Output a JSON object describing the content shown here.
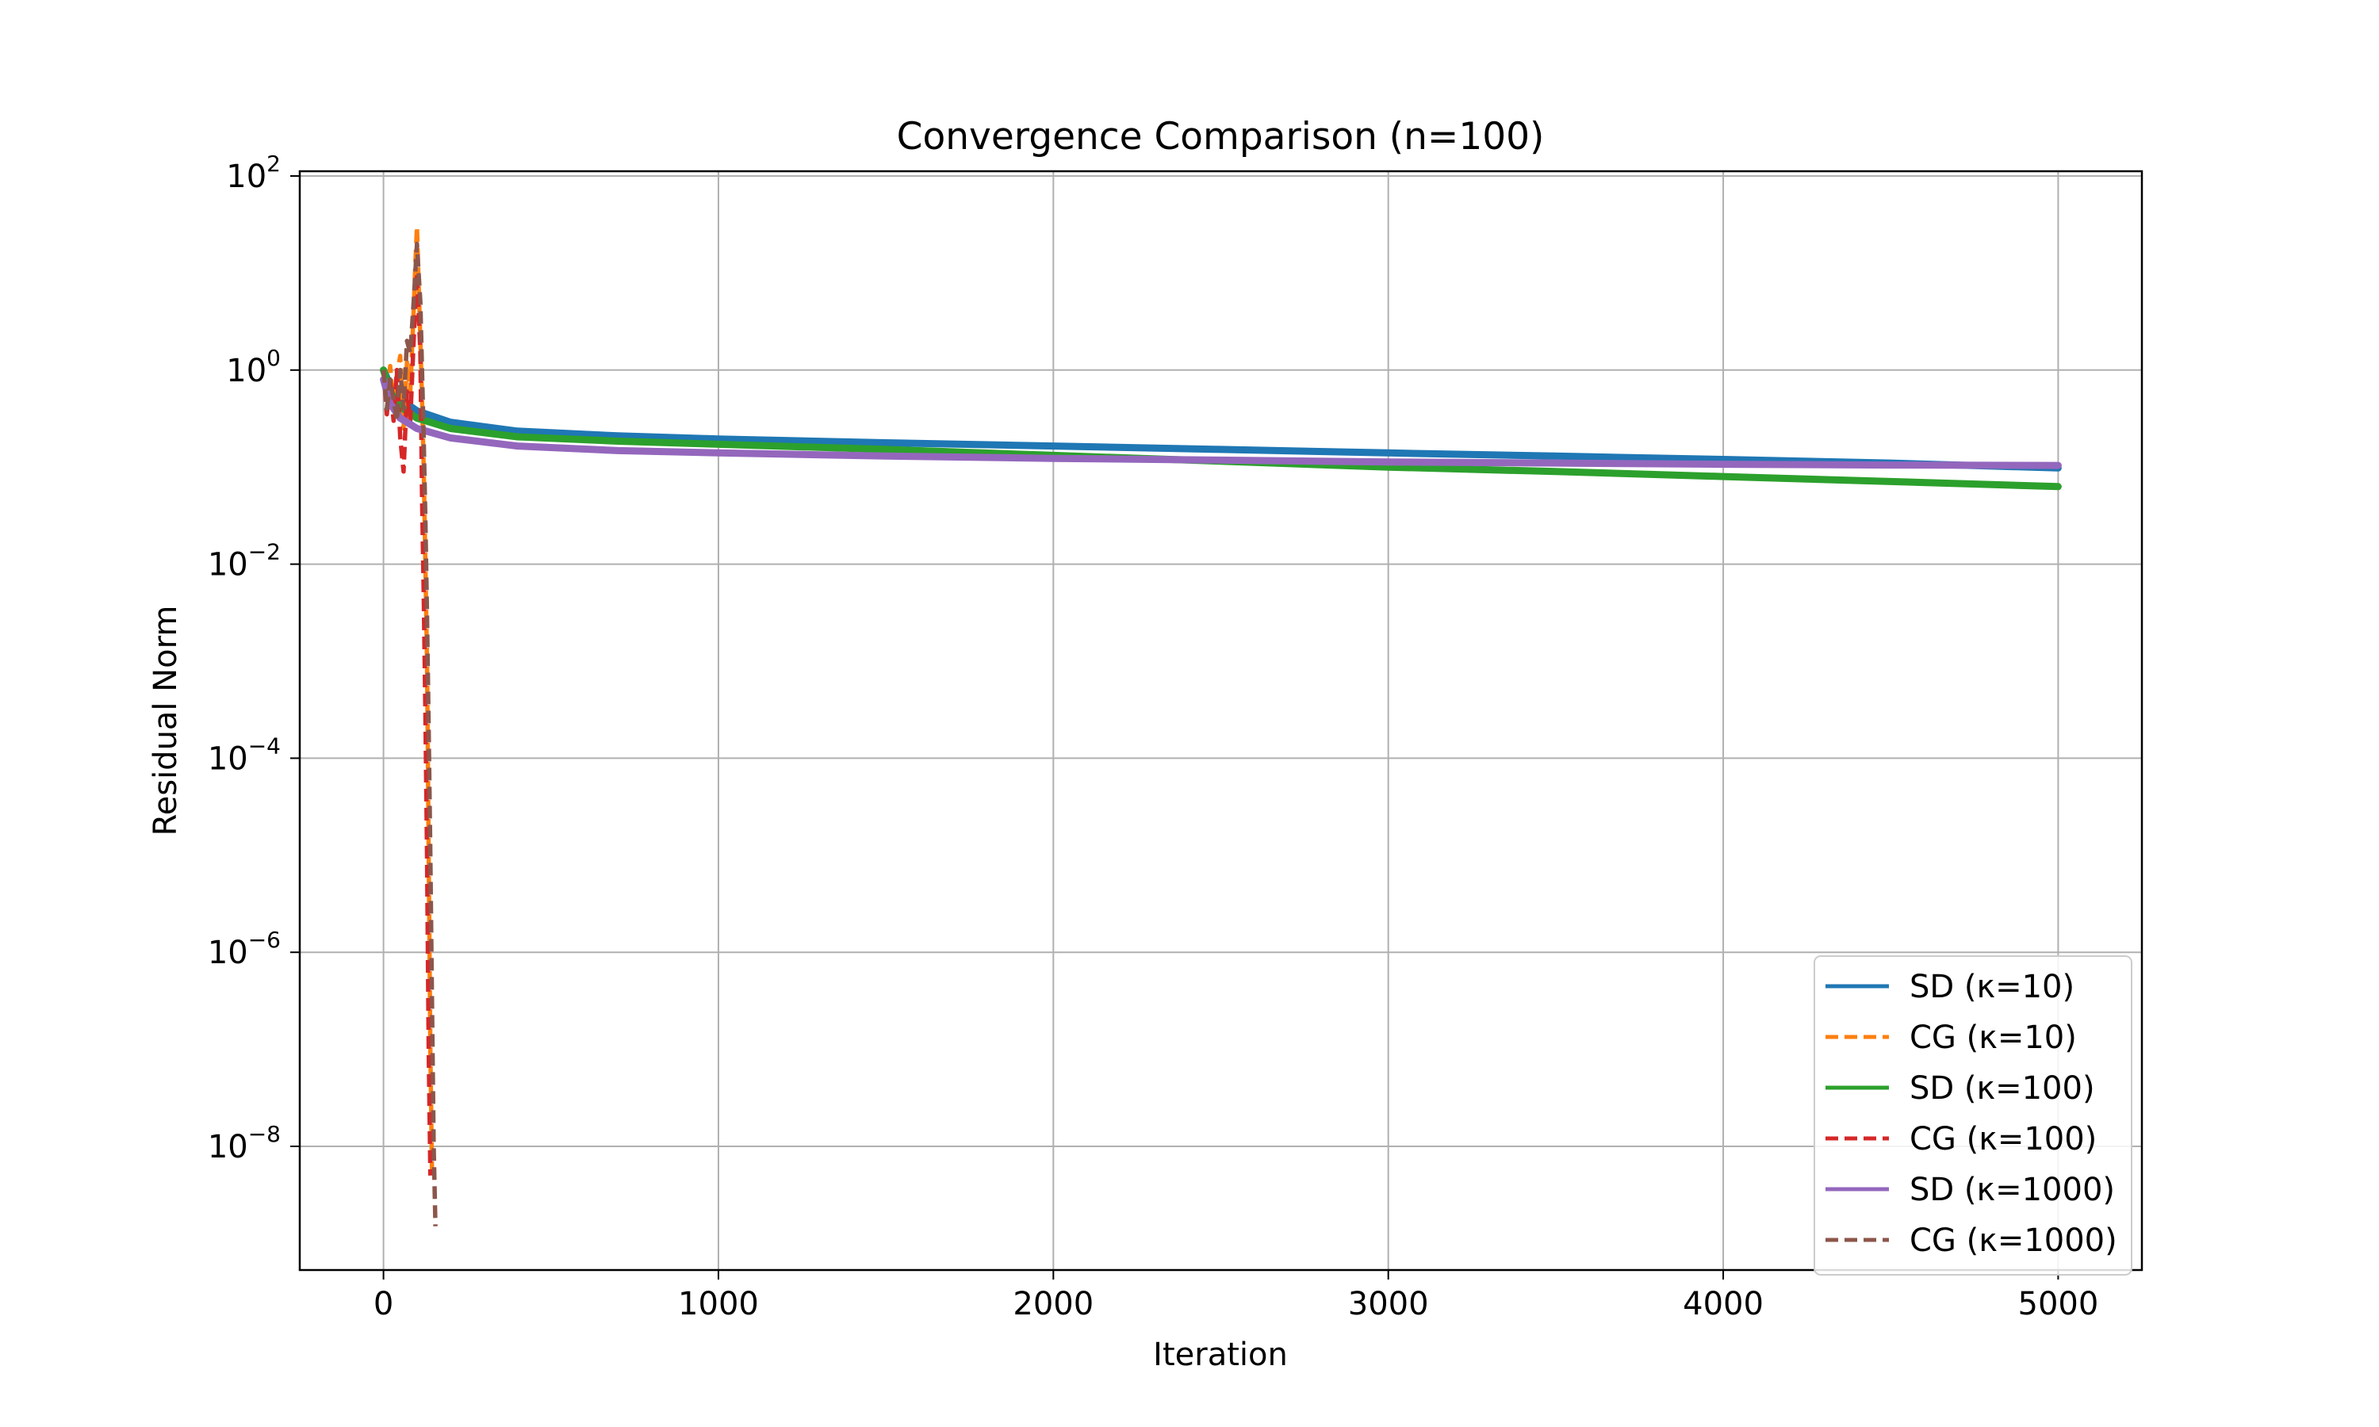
{
  "chart_data": {
    "type": "line",
    "title": "Convergence Comparison (n=100)",
    "xlabel": "Iteration",
    "ylabel": "Residual Norm",
    "xscale": "linear",
    "yscale": "log",
    "xlim": [
      -250,
      5250
    ],
    "ylim": [
      1e-10,
      100
    ],
    "xticks": [
      "0",
      "1000",
      "2000",
      "3000",
      "4000",
      "5000"
    ],
    "xtick_values": [
      0,
      1000,
      2000,
      3000,
      4000,
      5000
    ],
    "yticks": [
      {
        "base": "10",
        "exp": "2",
        "value": 100
      },
      {
        "base": "10",
        "exp": "0",
        "value": 1
      },
      {
        "base": "10",
        "exp": "−2",
        "value": 0.01
      },
      {
        "base": "10",
        "exp": "−4",
        "value": 0.0001
      },
      {
        "base": "10",
        "exp": "−6",
        "value": 1e-06
      },
      {
        "base": "10",
        "exp": "−8",
        "value": 1e-08
      }
    ],
    "grid": true,
    "legend_position": "lower right",
    "series": [
      {
        "name": "SD (κ=10)",
        "color": "#1f77b4",
        "style": "solid",
        "x": [
          0,
          20,
          50,
          100,
          200,
          400,
          700,
          1000,
          1500,
          2000,
          2500,
          3000,
          3500,
          4000,
          4500,
          5000
        ],
        "y": [
          1.0,
          0.7,
          0.5,
          0.38,
          0.29,
          0.235,
          0.21,
          0.195,
          0.178,
          0.165,
          0.152,
          0.14,
          0.13,
          0.12,
          0.11,
          0.098
        ]
      },
      {
        "name": "CG (κ=10)",
        "color": "#ff7f0e",
        "style": "dashed",
        "x": [
          0,
          10,
          20,
          30,
          40,
          50,
          60,
          70,
          80,
          90,
          95,
          100,
          105,
          110,
          115,
          120,
          125,
          130,
          135,
          140,
          145
        ],
        "y": [
          1.0,
          0.5,
          1.1,
          0.4,
          0.9,
          1.4,
          0.25,
          1.2,
          0.6,
          4.0,
          12.0,
          30.0,
          8.0,
          2.0,
          0.5,
          0.1,
          0.01,
          0.001,
          1e-05,
          1e-07,
          5e-09
        ]
      },
      {
        "name": "SD (κ=100)",
        "color": "#2ca02c",
        "style": "solid",
        "x": [
          0,
          20,
          50,
          100,
          200,
          400,
          700,
          1000,
          1500,
          2000,
          2500,
          3000,
          3500,
          4000,
          4500,
          5000
        ],
        "y": [
          1.0,
          0.6,
          0.42,
          0.32,
          0.25,
          0.205,
          0.185,
          0.172,
          0.152,
          0.132,
          0.115,
          0.1,
          0.09,
          0.08,
          0.071,
          0.063
        ]
      },
      {
        "name": "CG (κ=100)",
        "color": "#d62728",
        "style": "dashed",
        "x": [
          0,
          10,
          20,
          30,
          40,
          50,
          60,
          70,
          80,
          90,
          100,
          110,
          115,
          120,
          125,
          130,
          135,
          140
        ],
        "y": [
          1.0,
          0.35,
          0.8,
          0.3,
          1.0,
          0.2,
          0.09,
          0.6,
          0.3,
          2.0,
          10.0,
          1.5,
          0.05,
          0.005,
          0.0003,
          1e-05,
          1e-07,
          5e-09
        ]
      },
      {
        "name": "SD (κ=1000)",
        "color": "#9467bd",
        "style": "solid",
        "x": [
          0,
          20,
          50,
          100,
          200,
          400,
          700,
          1000,
          1500,
          2000,
          2500,
          3000,
          3500,
          4000,
          4500,
          5000
        ],
        "y": [
          0.8,
          0.45,
          0.32,
          0.25,
          0.2,
          0.165,
          0.148,
          0.14,
          0.13,
          0.123,
          0.118,
          0.113,
          0.11,
          0.107,
          0.105,
          0.104
        ]
      },
      {
        "name": "CG (κ=1000)",
        "color": "#8c564b",
        "style": "dashed",
        "x": [
          0,
          10,
          20,
          30,
          40,
          50,
          60,
          70,
          80,
          90,
          100,
          105,
          110,
          115,
          120,
          125,
          130,
          135,
          140,
          145,
          150,
          155
        ],
        "y": [
          1.0,
          0.4,
          0.8,
          0.5,
          0.3,
          1.0,
          0.4,
          2.0,
          1.5,
          5.0,
          20.0,
          10.0,
          5.0,
          1.0,
          0.2,
          0.03,
          0.003,
          0.0002,
          1e-05,
          3e-07,
          1e-08,
          1.5e-09
        ]
      }
    ]
  }
}
